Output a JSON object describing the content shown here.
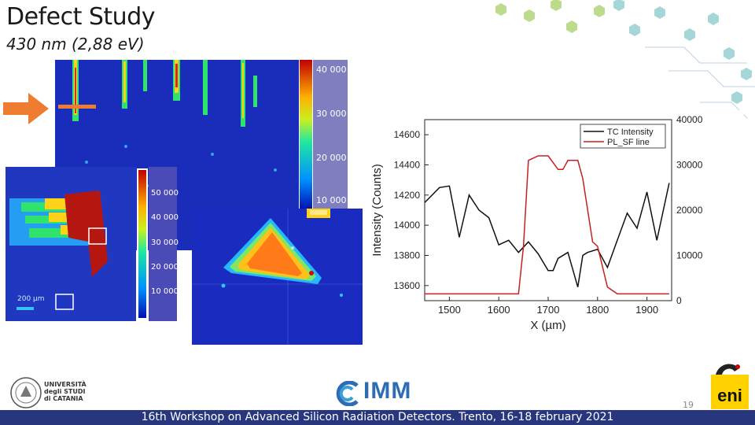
{
  "slide": {
    "title": "Defect Study",
    "subtitle": "430 nm (2,88 eV)",
    "page_number": "19",
    "footer": "16th Workshop on Advanced Silicon Radiation Detectors. Trento, 16-18 february 2021"
  },
  "colors": {
    "footer_bg": "#28367e",
    "arrow": "#ef7d31",
    "map_bg": "#1a2bbf",
    "pl_line": "#c62020",
    "tcl_line": "#111111"
  },
  "map_main": {
    "colorbar_ticks": [
      "40 000",
      "30 000",
      "20 000",
      "10 000"
    ]
  },
  "map_left": {
    "colorbar_ticks": [
      "50 000",
      "40 000",
      "30 000",
      "20 000",
      "10 000"
    ],
    "scalebar_label": "200 µm"
  },
  "logos": {
    "unict": "UNIVERSITÀ degli STUDI di CATANIA",
    "imm": "IMM",
    "eni": "eni"
  },
  "chart_data": {
    "type": "line",
    "xlabel": "X (µm)",
    "ylabel": "Intensity (Counts)",
    "xlim": [
      1450,
      1950
    ],
    "ylim": [
      13500,
      14700
    ],
    "y2lim": [
      0,
      40000
    ],
    "xticks": [
      1500,
      1600,
      1700,
      1800,
      1900
    ],
    "yticks": [
      13600,
      13800,
      14000,
      14200,
      14400,
      14600
    ],
    "y2ticks": [
      0,
      10000,
      20000,
      30000,
      40000
    ],
    "legend": [
      "TC Intensity",
      "PL_SF line"
    ],
    "legend_position": "top-right",
    "series": [
      {
        "name": "TC Intensity",
        "axis": "left",
        "x": [
          1450,
          1480,
          1500,
          1520,
          1540,
          1560,
          1580,
          1600,
          1620,
          1640,
          1660,
          1680,
          1700,
          1710,
          1720,
          1740,
          1760,
          1770,
          1780,
          1800,
          1820,
          1840,
          1860,
          1880,
          1900,
          1920,
          1945
        ],
        "y": [
          14150,
          14250,
          14260,
          13920,
          14200,
          14100,
          14050,
          13870,
          13900,
          13820,
          13890,
          13810,
          13700,
          13700,
          13780,
          13820,
          13590,
          13800,
          13820,
          13840,
          13720,
          13900,
          14080,
          13980,
          14220,
          13900,
          14280
        ]
      },
      {
        "name": "PL_SF line",
        "axis": "right",
        "x": [
          1450,
          1500,
          1550,
          1600,
          1640,
          1650,
          1660,
          1680,
          1700,
          1720,
          1730,
          1740,
          1760,
          1770,
          1790,
          1800,
          1820,
          1840,
          1860,
          1900,
          1945
        ],
        "y": [
          1500,
          1500,
          1500,
          1500,
          1500,
          12000,
          31000,
          32000,
          32000,
          29000,
          29000,
          31000,
          31000,
          27000,
          13000,
          12000,
          3000,
          1500,
          1500,
          1500,
          1500
        ]
      }
    ]
  }
}
